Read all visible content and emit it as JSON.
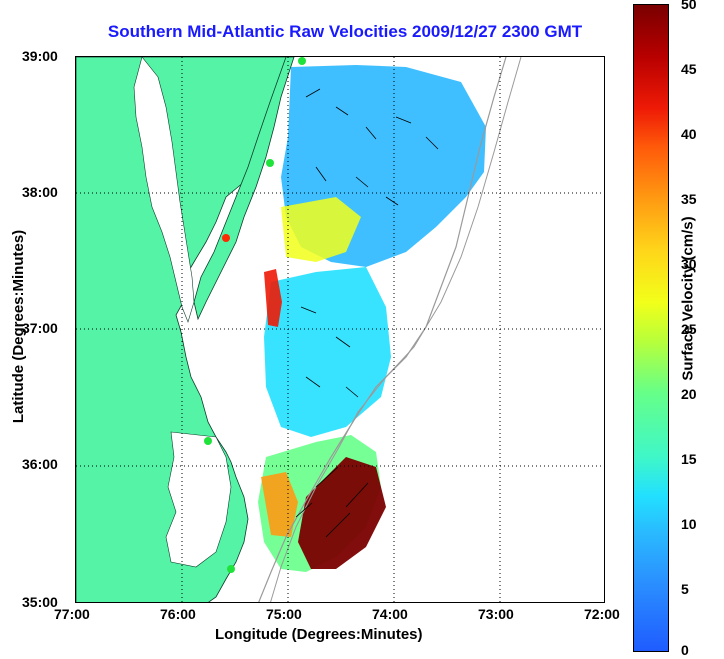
{
  "title": "Southern Mid-Atlantic Raw Velocities 2009/12/27 2300 GMT",
  "axes": {
    "xlabel": "Longitude (Degrees:Minutes)",
    "ylabel": "Latitude (Degrees:Minutes)",
    "x_ticks": [
      "77:00",
      "76:00",
      "75:00",
      "74:00",
      "73:00",
      "72:00"
    ],
    "y_ticks": [
      "39:00",
      "38:00",
      "37:00",
      "36:00",
      "35:00"
    ]
  },
  "colorbar": {
    "label": "Surface Velocity (cm/s)",
    "ticks": [
      "50",
      "45",
      "40",
      "35",
      "30",
      "25",
      "20",
      "15",
      "10",
      "5",
      "0"
    ],
    "min": 0,
    "max": 50
  },
  "colors": {
    "land": "#55f3a6",
    "title": "#1a1aff",
    "station": "#1ee33a",
    "station_alt": "#ff2a00"
  }
}
